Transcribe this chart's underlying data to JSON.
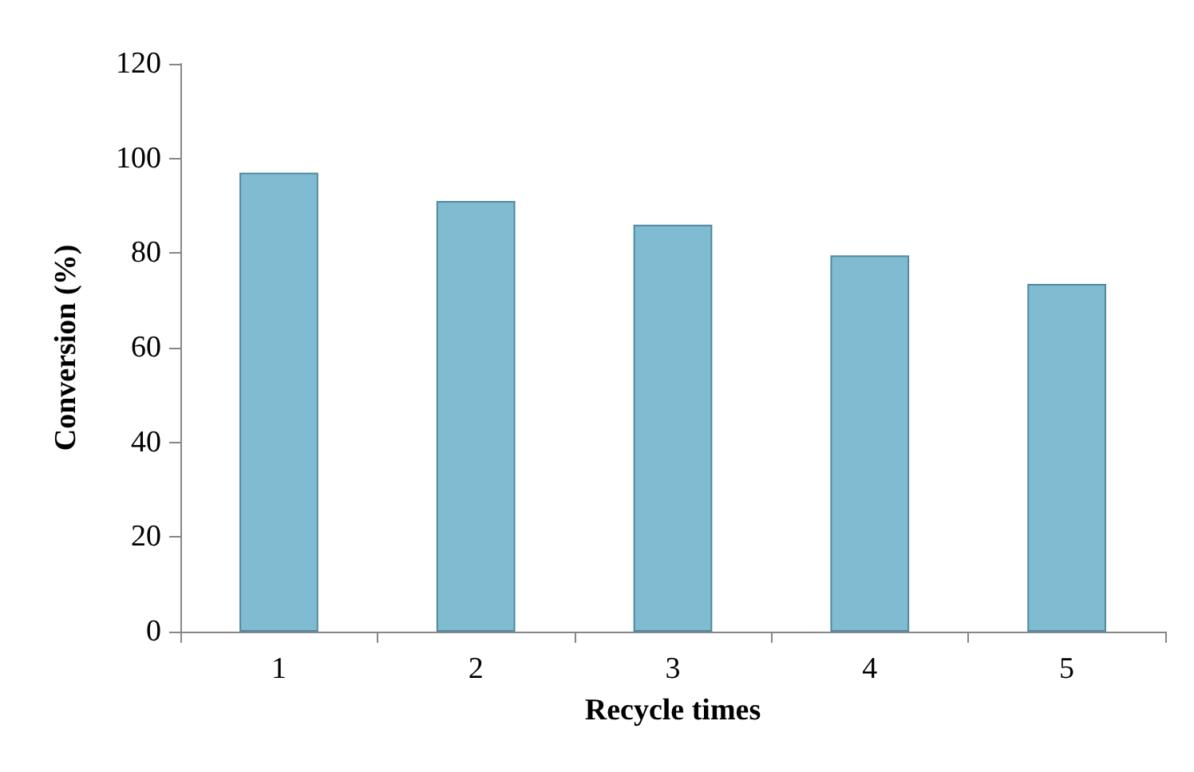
{
  "chart_data": {
    "type": "bar",
    "xlabel": "Recycle times",
    "ylabel": "Conversion (%)",
    "categories": [
      "1",
      "2",
      "3",
      "4",
      "5"
    ],
    "values": [
      97,
      91,
      86,
      79.5,
      73.5
    ],
    "color": "#7fbcd2",
    "ylim": [
      0,
      120
    ],
    "yticks": [
      0,
      20,
      40,
      60,
      80,
      100,
      120
    ],
    "grid": false
  }
}
